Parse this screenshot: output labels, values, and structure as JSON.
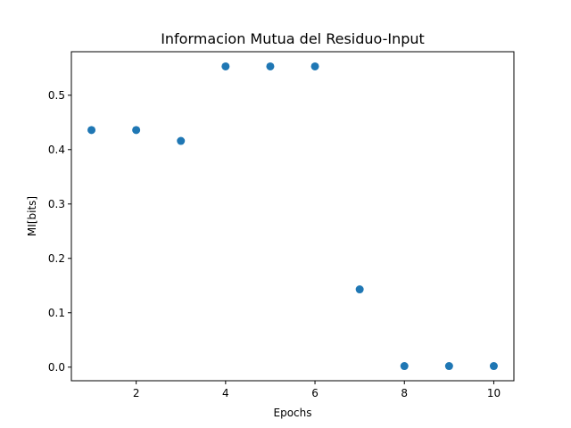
{
  "chart_data": {
    "type": "scatter",
    "title": "Informacion Mutua del Residuo-Input",
    "xlabel": "Epochs",
    "ylabel": "MI[bits]",
    "x": [
      1,
      2,
      3,
      4,
      5,
      6,
      7,
      8,
      9,
      10
    ],
    "y": [
      0.436,
      0.436,
      0.416,
      0.553,
      0.553,
      0.553,
      0.143,
      0.002,
      0.002,
      0.002
    ],
    "xlim": [
      0.55,
      10.45
    ],
    "ylim": [
      -0.025,
      0.58
    ],
    "xticks": [
      2,
      4,
      6,
      8,
      10
    ],
    "xtick_labels": [
      "2",
      "4",
      "6",
      "8",
      "10"
    ],
    "yticks": [
      0.0,
      0.1,
      0.2,
      0.3,
      0.4,
      0.5
    ],
    "ytick_labels": [
      "0.0",
      "0.1",
      "0.2",
      "0.3",
      "0.4",
      "0.5"
    ],
    "marker_color": "#1f77b4",
    "grid": false,
    "legend": "none"
  }
}
